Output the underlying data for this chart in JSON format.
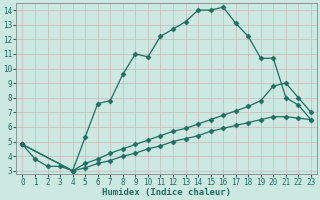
{
  "xlabel": "Humidex (Indice chaleur)",
  "xlim": [
    -0.5,
    23.5
  ],
  "ylim": [
    2.8,
    14.5
  ],
  "xticks": [
    0,
    1,
    2,
    3,
    4,
    5,
    6,
    7,
    8,
    9,
    10,
    11,
    12,
    13,
    14,
    15,
    16,
    17,
    18,
    19,
    20,
    21,
    22,
    23
  ],
  "yticks": [
    3,
    4,
    5,
    6,
    7,
    8,
    9,
    10,
    11,
    12,
    13,
    14
  ],
  "bg_color": "#cce9e1",
  "line_color": "#1e6e62",
  "grid_major_color": "#c8b8b8",
  "grid_minor_color": "#ddd0d0",
  "line1_x": [
    0,
    1,
    2,
    3,
    4,
    5,
    6,
    7,
    8,
    9,
    10,
    11,
    12,
    13,
    14,
    15,
    16,
    17,
    18,
    19,
    20,
    21,
    22,
    23
  ],
  "line1_y": [
    4.8,
    3.8,
    3.3,
    3.3,
    3.0,
    5.3,
    7.6,
    7.8,
    9.6,
    11.0,
    10.8,
    12.2,
    12.7,
    13.2,
    14.0,
    14.0,
    14.2,
    13.1,
    12.2,
    10.7,
    10.7,
    8.0,
    7.5,
    6.5
  ],
  "line2_x": [
    0,
    4,
    5,
    6,
    7,
    8,
    9,
    10,
    11,
    12,
    13,
    14,
    15,
    16,
    17,
    18,
    19,
    20,
    21,
    22,
    23
  ],
  "line2_y": [
    4.8,
    3.0,
    3.5,
    3.8,
    4.2,
    4.5,
    4.8,
    5.1,
    5.4,
    5.7,
    5.9,
    6.2,
    6.5,
    6.8,
    7.1,
    7.4,
    7.8,
    8.8,
    9.0,
    8.0,
    7.0
  ],
  "line3_x": [
    0,
    4,
    5,
    6,
    7,
    8,
    9,
    10,
    11,
    12,
    13,
    14,
    15,
    16,
    17,
    18,
    19,
    20,
    21,
    22,
    23
  ],
  "line3_y": [
    4.8,
    3.0,
    3.2,
    3.5,
    3.7,
    4.0,
    4.2,
    4.5,
    4.7,
    5.0,
    5.2,
    5.4,
    5.7,
    5.9,
    6.1,
    6.3,
    6.5,
    6.7,
    6.7,
    6.6,
    6.5
  ],
  "marker": "D",
  "markersize": 2.5,
  "linewidth": 0.9,
  "tick_fontsize": 5.5,
  "label_fontsize": 6.5
}
